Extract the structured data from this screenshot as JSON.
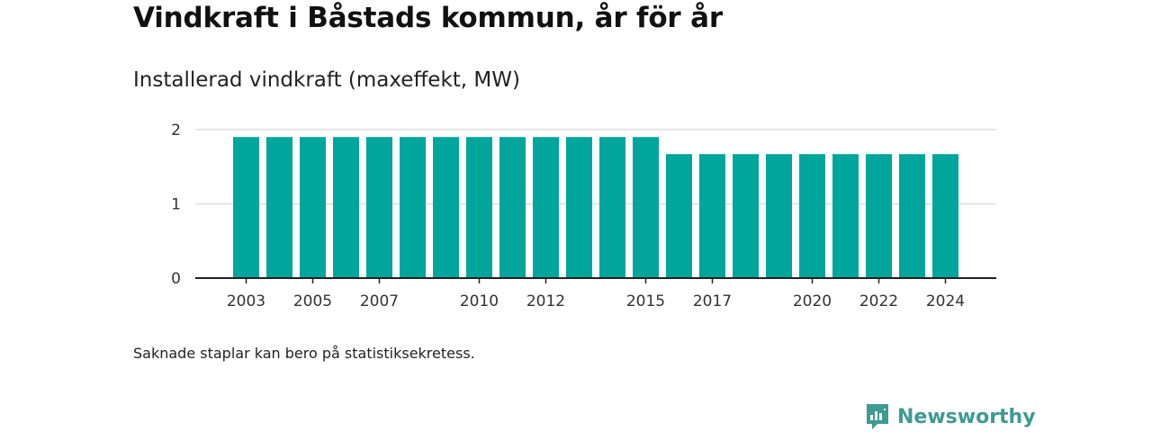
{
  "header": {
    "title": "Vindkraft i Båstads kommun, år för år",
    "subtitle": "Installerad vindkraft (maxeffekt, MW)"
  },
  "footer": {
    "note": "Saknade staplar kan bero på statistiksekretess.",
    "brand": "Newsworthy"
  },
  "colors": {
    "bar": "#00a59b",
    "brand": "#3e9b92"
  },
  "chart_data": {
    "type": "bar",
    "title": "Vindkraft i Båstads kommun, år för år",
    "subtitle": "Installerad vindkraft (maxeffekt, MW)",
    "xlabel": "",
    "ylabel": "",
    "categories": [
      2003,
      2004,
      2005,
      2006,
      2007,
      2008,
      2009,
      2010,
      2011,
      2012,
      2013,
      2014,
      2015,
      2016,
      2017,
      2018,
      2019,
      2020,
      2021,
      2022,
      2023,
      2024
    ],
    "values": [
      1.9,
      1.9,
      1.9,
      1.9,
      1.9,
      1.9,
      1.9,
      1.9,
      1.9,
      1.9,
      1.9,
      1.9,
      1.9,
      1.67,
      1.67,
      1.67,
      1.67,
      1.67,
      1.67,
      1.67,
      1.67,
      1.67
    ],
    "x_tick_labels": [
      "2003",
      "2005",
      "2007",
      "2010",
      "2012",
      "2015",
      "2017",
      "2020",
      "2022",
      "2024"
    ],
    "y_ticks": [
      0,
      1,
      2
    ],
    "ylim": [
      0,
      2
    ],
    "grid": true,
    "legend": "none"
  }
}
